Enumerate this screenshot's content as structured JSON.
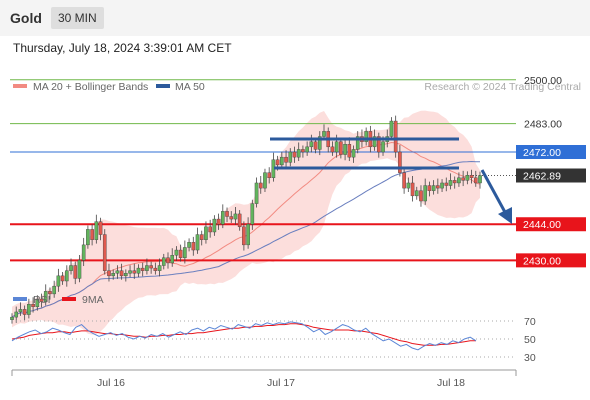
{
  "header": {
    "instrument": "Gold",
    "timeframe": "30 MIN",
    "datetime": "Thursday, July 18, 2024 3:39:01 AM CET"
  },
  "chart_data": [
    {
      "type": "candlestick",
      "legend": [
        {
          "label": "MA 20 + Bollinger Bands",
          "color": "#f28b82"
        },
        {
          "label": "MA 50",
          "color": "#2c5a9c"
        }
      ],
      "credit": "Research © 2024 Trading Central",
      "y_range": [
        2400,
        2520
      ],
      "x_ticks": [
        "Jul 16",
        "Jul 17",
        "Jul 18"
      ],
      "levels": [
        {
          "value": 2500,
          "label": "2500.00",
          "color": "#70b84a",
          "kind": "resistance"
        },
        {
          "value": 2483,
          "label": "2483.00",
          "color": "#70b84a",
          "kind": "resistance"
        },
        {
          "value": 2472,
          "label": "2472.00",
          "color": "#2f6fd6",
          "kind": "pivot"
        },
        {
          "value": 2444,
          "label": "2444.00",
          "color": "#e8141b",
          "kind": "support"
        },
        {
          "value": 2430,
          "label": "2430.00",
          "color": "#e8141b",
          "kind": "support"
        }
      ],
      "last_price": {
        "value": 2462.89,
        "label": "2462.89"
      },
      "closes": [
        2408,
        2410,
        2411,
        2409,
        2413,
        2412,
        2415,
        2414,
        2418,
        2417,
        2420,
        2424,
        2422,
        2426,
        2428,
        2423,
        2430,
        2436,
        2442,
        2438,
        2445,
        2440,
        2426,
        2424,
        2425,
        2426,
        2424,
        2425,
        2426,
        2425,
        2427,
        2426,
        2428,
        2427,
        2426,
        2428,
        2431,
        2429,
        2432,
        2434,
        2431,
        2435,
        2437,
        2434,
        2440,
        2438,
        2443,
        2441,
        2446,
        2444,
        2449,
        2447,
        2446,
        2448,
        2443,
        2436,
        2444,
        2452,
        2460,
        2458,
        2464,
        2462,
        2469,
        2467,
        2470,
        2468,
        2472,
        2470,
        2473,
        2472,
        2474,
        2476,
        2473,
        2478,
        2480,
        2474,
        2472,
        2476,
        2471,
        2475,
        2470,
        2473,
        2478,
        2476,
        2480,
        2474,
        2478,
        2472,
        2476,
        2478,
        2484,
        2472,
        2464,
        2458,
        2460,
        2455,
        2457,
        2453,
        2459,
        2457,
        2459,
        2458,
        2460,
        2459,
        2461,
        2460,
        2462,
        2461,
        2463,
        2462,
        2460,
        2462.89
      ],
      "rsi": {
        "legend": [
          {
            "label": "RSI",
            "color": "#5b86d6"
          },
          {
            "label": "9MA",
            "color": "#e8141b"
          }
        ],
        "y_range": [
          20,
          80
        ],
        "ticks": [
          "70",
          "50",
          "30"
        ],
        "rsi_values": [
          48,
          52,
          55,
          58,
          60,
          56,
          58,
          62,
          60,
          57,
          55,
          63,
          66,
          60,
          56,
          53,
          55,
          57,
          54,
          56,
          52,
          50,
          53,
          51,
          55,
          53,
          56,
          52,
          55,
          58,
          55,
          60,
          62,
          59,
          63,
          61,
          65,
          63,
          61,
          66,
          64,
          62,
          67,
          65,
          68,
          66,
          68,
          67,
          69,
          68,
          67,
          63,
          58,
          61,
          55,
          58,
          62,
          66,
          64,
          60,
          58,
          62,
          56,
          52,
          48,
          50,
          46,
          42,
          44,
          40,
          38,
          42,
          45,
          43,
          46,
          44,
          48,
          46,
          50,
          52,
          48
        ],
        "ma_values": [
          50,
          51,
          52,
          54,
          55,
          56,
          57,
          57,
          58,
          58,
          57,
          58,
          59,
          59,
          58,
          57,
          56,
          56,
          55,
          55,
          54,
          53,
          53,
          52,
          53,
          53,
          54,
          54,
          55,
          55,
          56,
          56,
          57,
          57,
          58,
          59,
          60,
          61,
          62,
          62,
          63,
          63,
          64,
          64,
          65,
          65,
          66,
          66,
          67,
          67,
          66,
          65,
          63,
          62,
          61,
          60,
          60,
          60,
          60,
          59,
          59,
          58,
          57,
          56,
          54,
          52,
          50,
          48,
          47,
          45,
          44,
          43,
          43,
          43,
          44,
          44,
          45,
          46,
          47,
          48,
          48
        ]
      }
    }
  ]
}
